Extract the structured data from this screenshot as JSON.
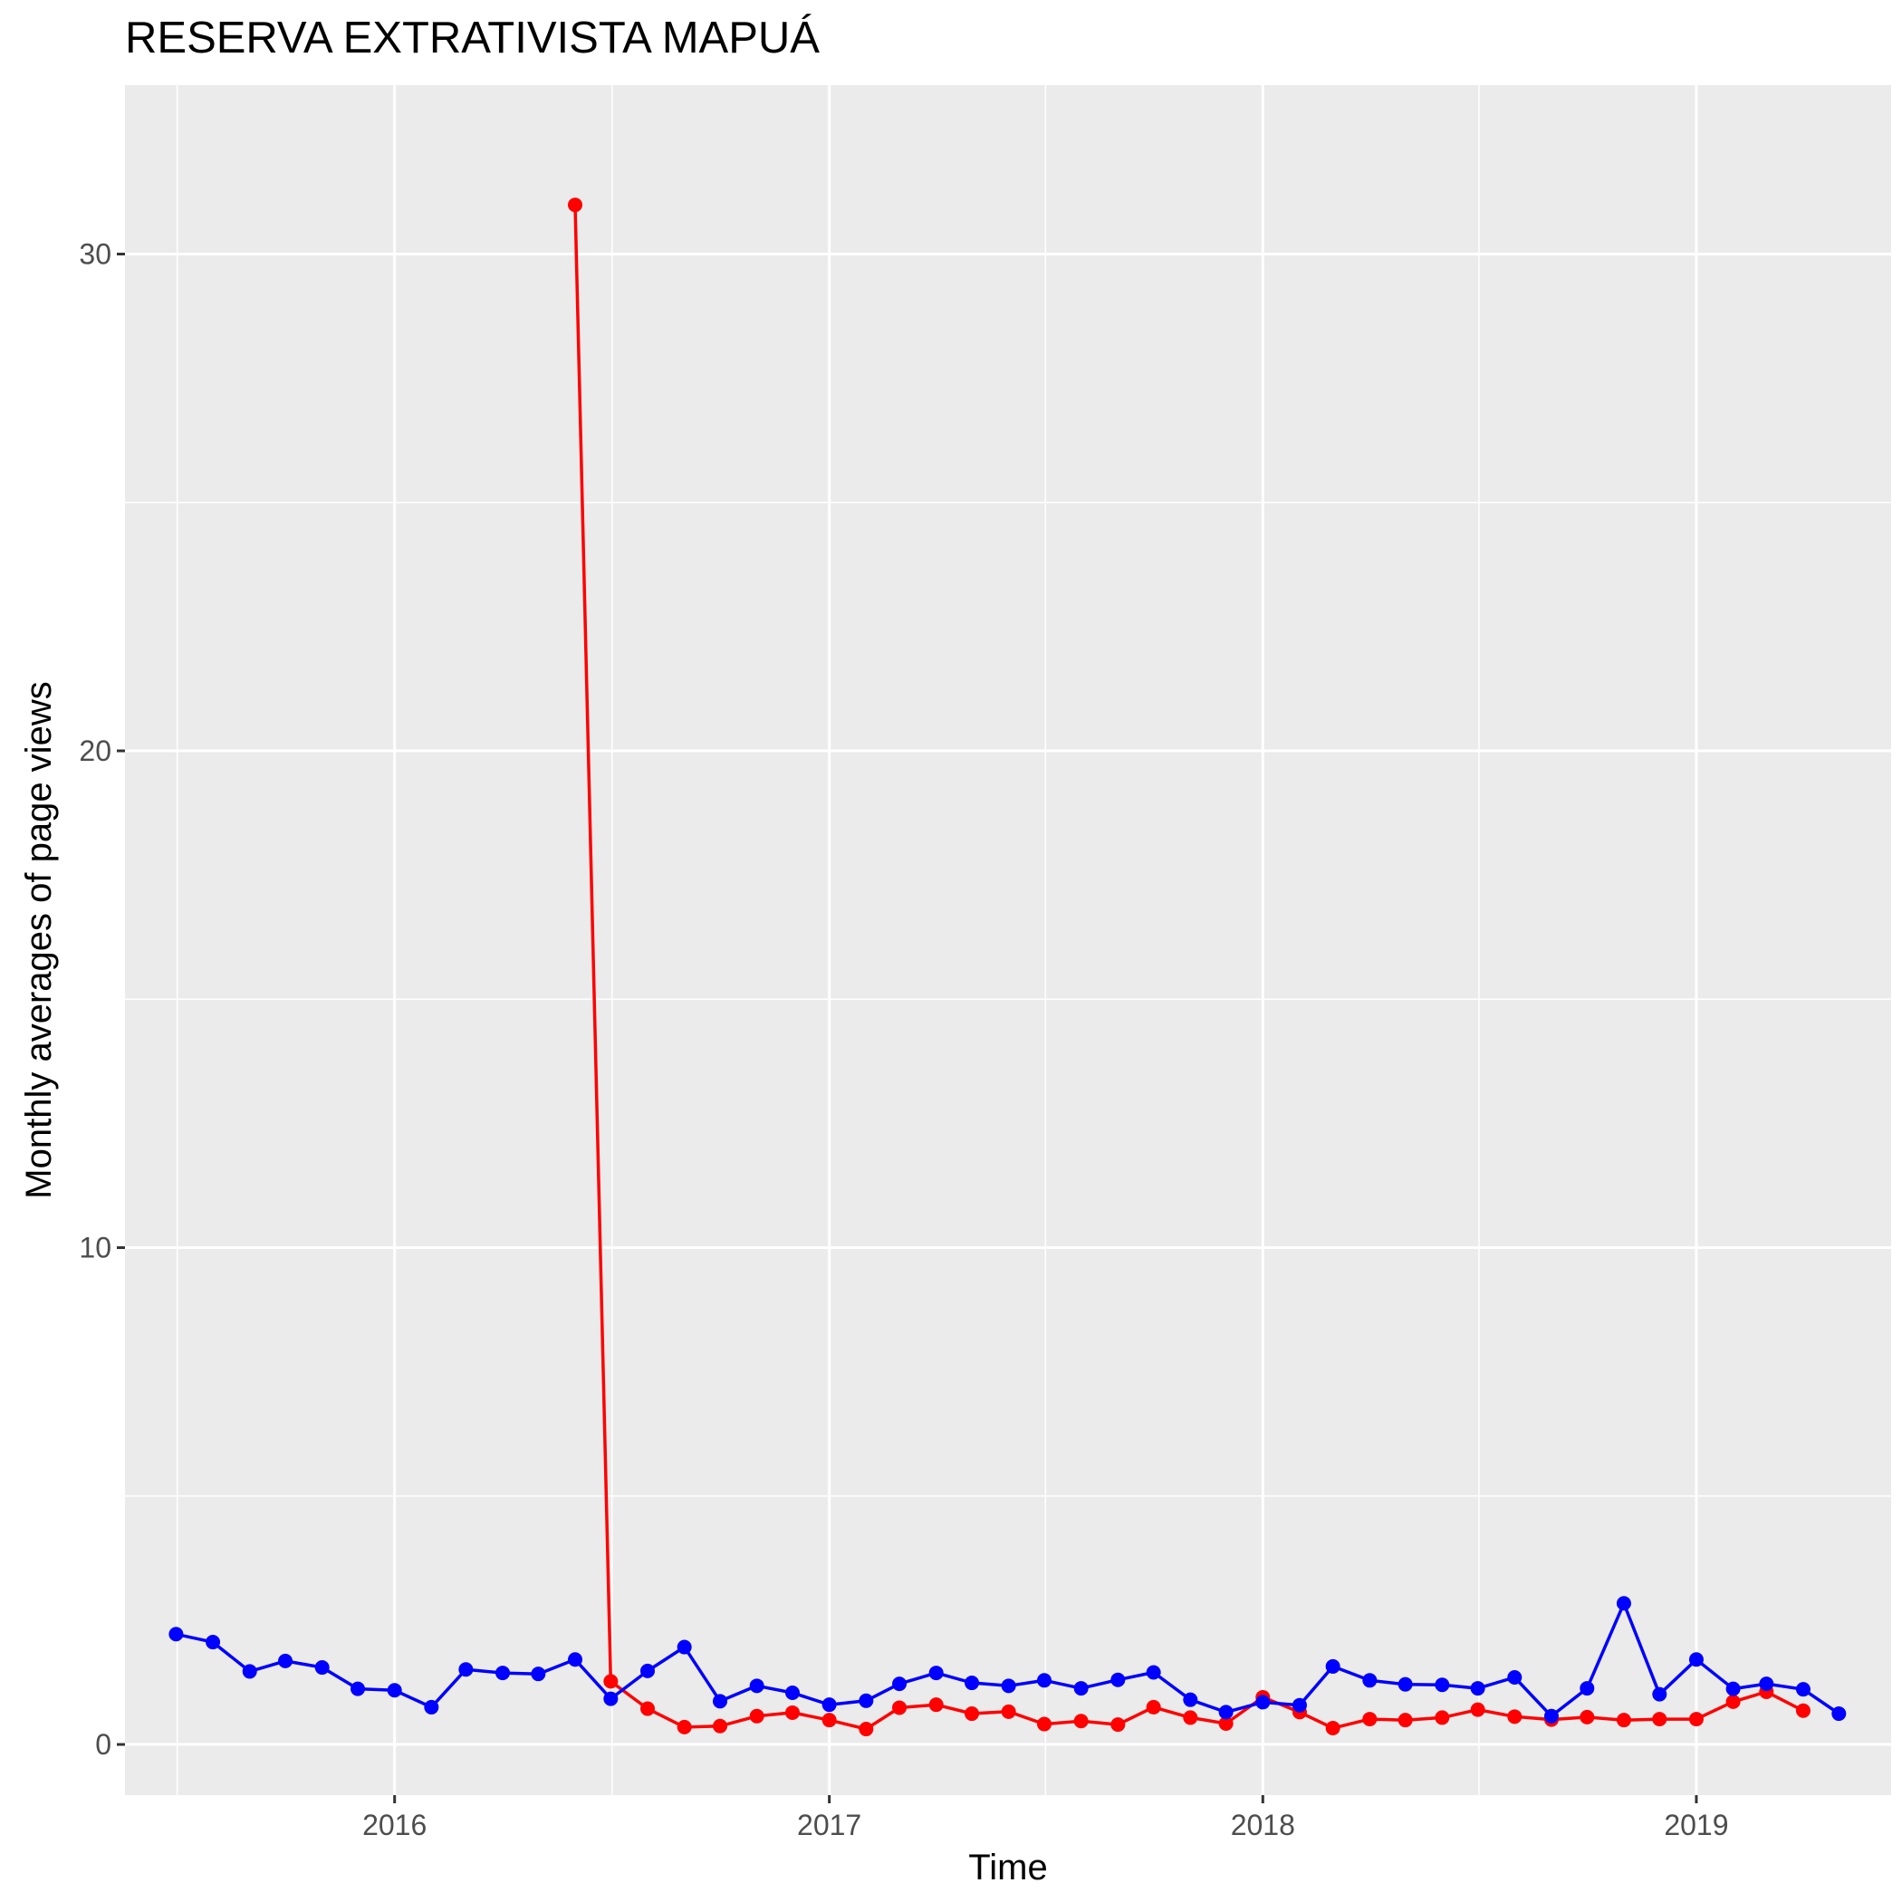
{
  "chart_data": {
    "type": "line",
    "title": "RESERVA EXTRATIVISTA MAPUÁ",
    "xlabel": "Time",
    "ylabel": "Monthly averages of page views",
    "x_ticks": [
      "2016",
      "2017",
      "2018",
      "2019"
    ],
    "y_ticks": [
      0,
      10,
      20,
      30
    ],
    "xlim": [
      "2015-05-19",
      "2019-06-14"
    ],
    "ylim": [
      -1.02,
      33.4
    ],
    "grid": true,
    "legend": "none",
    "background": "#ebebeb",
    "series": [
      {
        "color": "#0000ff",
        "dates": [
          "2015-07-01",
          "2015-08-01",
          "2015-09-01",
          "2015-10-01",
          "2015-11-01",
          "2015-12-01",
          "2016-01-01",
          "2016-02-01",
          "2016-03-01",
          "2016-04-01",
          "2016-05-01",
          "2016-06-01",
          "2016-07-01",
          "2016-08-01",
          "2016-09-01",
          "2016-10-01",
          "2016-11-01",
          "2016-12-01",
          "2017-01-01",
          "2017-02-01",
          "2017-03-01",
          "2017-04-01",
          "2017-05-01",
          "2017-06-01",
          "2017-07-01",
          "2017-08-01",
          "2017-09-01",
          "2017-10-01",
          "2017-11-01",
          "2017-12-01",
          "2018-01-01",
          "2018-02-01",
          "2018-03-01",
          "2018-04-01",
          "2018-05-01",
          "2018-06-01",
          "2018-07-01",
          "2018-08-01",
          "2018-09-01",
          "2018-10-01",
          "2018-11-01",
          "2018-12-01",
          "2019-01-01",
          "2019-02-01",
          "2019-03-01",
          "2019-04-01",
          "2019-05-01"
        ],
        "values": [
          2.22,
          2.06,
          1.47,
          1.68,
          1.55,
          1.12,
          1.09,
          0.75,
          1.51,
          1.44,
          1.42,
          1.71,
          0.92,
          1.48,
          1.96,
          0.87,
          1.18,
          1.04,
          0.8,
          0.88,
          1.22,
          1.44,
          1.24,
          1.18,
          1.29,
          1.13,
          1.3,
          1.45,
          0.9,
          0.65,
          0.85,
          0.79,
          1.57,
          1.29,
          1.21,
          1.2,
          1.13,
          1.35,
          0.57,
          1.13,
          2.84,
          1.01,
          1.71,
          1.12,
          1.22,
          1.11,
          0.62
        ]
      },
      {
        "color": "#ff0000",
        "dates": [
          "2016-06-01",
          "2016-07-01",
          "2016-08-01",
          "2016-09-01",
          "2016-10-01",
          "2016-11-01",
          "2016-12-01",
          "2017-01-01",
          "2017-02-01",
          "2017-03-01",
          "2017-04-01",
          "2017-05-01",
          "2017-06-01",
          "2017-07-01",
          "2017-08-01",
          "2017-09-01",
          "2017-10-01",
          "2017-11-01",
          "2017-12-01",
          "2018-01-01",
          "2018-02-01",
          "2018-03-01",
          "2018-04-01",
          "2018-05-01",
          "2018-06-01",
          "2018-07-01",
          "2018-08-01",
          "2018-09-01",
          "2018-10-01",
          "2018-11-01",
          "2018-12-01",
          "2019-01-01",
          "2019-02-01",
          "2019-03-01",
          "2019-04-01"
        ],
        "values": [
          30.99,
          1.27,
          0.72,
          0.35,
          0.37,
          0.57,
          0.64,
          0.49,
          0.31,
          0.74,
          0.8,
          0.62,
          0.66,
          0.41,
          0.47,
          0.4,
          0.75,
          0.54,
          0.42,
          0.95,
          0.65,
          0.33,
          0.51,
          0.49,
          0.54,
          0.7,
          0.56,
          0.5,
          0.55,
          0.49,
          0.51,
          0.51,
          0.86,
          1.06,
          0.68
        ]
      }
    ]
  }
}
